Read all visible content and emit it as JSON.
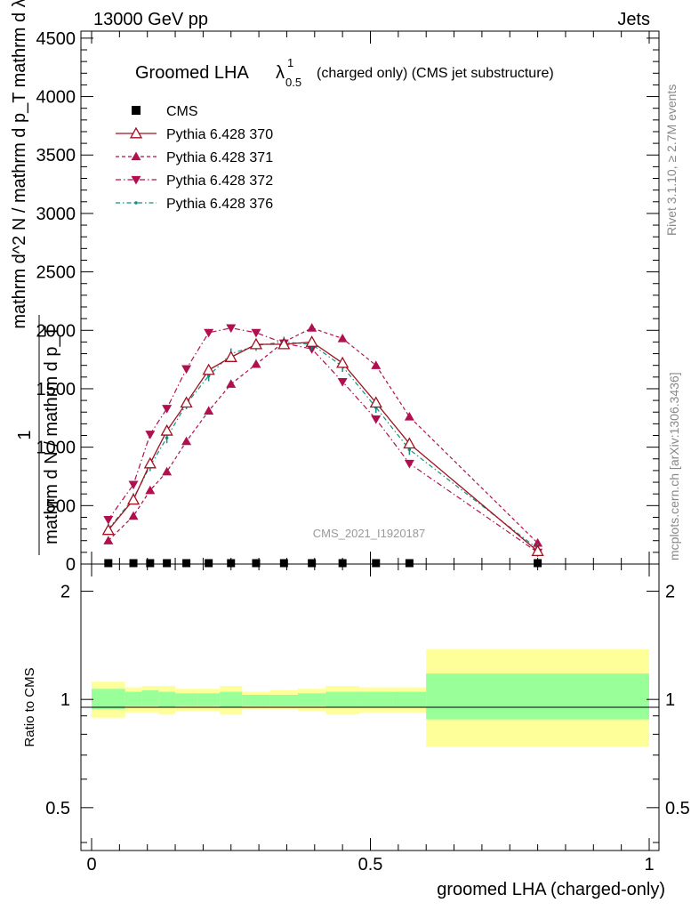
{
  "header": {
    "left": "13000 GeV pp",
    "right": "Jets"
  },
  "side_texts": {
    "rivet": "Rivet 3.1.10, ≥ 2.7M events",
    "mcplots": "mcplots.cern.ch [arXiv:1306.3436]"
  },
  "watermark": "CMS_2021_I1920187",
  "colors": {
    "cms": "#000000",
    "p370": "#a01020",
    "p371": "#b0104f",
    "p372": "#b0104f",
    "p376": "#109080",
    "band_inner": "#99ff99",
    "band_outer": "#ffff99"
  },
  "chart_data": {
    "type": "line",
    "title_main": "Groomed LHA",
    "title_symbol": "λ",
    "title_sup": "1",
    "title_sub": "0.5",
    "title_suffix": "(charged only) (CMS jet substructure)",
    "ylabel_numerator": "1",
    "ylabel_denominator": "mathrm d N / mathrm d p_T",
    "ylabel_extra": "mathrm d^2 N / mathrm d p_T mathrm d λ",
    "xlabel": "groomed LHA (charged-only)",
    "ratio_ylabel": "Ratio to CMS",
    "xlim": [
      0,
      1
    ],
    "ylim": [
      0,
      4560
    ],
    "ratio_ylim": [
      0.38,
      2.38
    ],
    "x_ticks": [
      0,
      0.5,
      1
    ],
    "x_tick_labels": [
      "0",
      "0.5",
      "1"
    ],
    "y_ticks": [
      0,
      500,
      1000,
      1500,
      2000,
      2500,
      3000,
      3500,
      4000,
      4500
    ],
    "y_tick_labels": [
      "0",
      "500",
      "1000",
      "1500",
      "2000",
      "2500",
      "3000",
      "3500",
      "4000",
      "4500"
    ],
    "ratio_ticks": [
      0.5,
      1,
      2
    ],
    "ratio_tick_labels": [
      "0.5",
      "1",
      "2"
    ],
    "x": [
      0.03,
      0.075,
      0.105,
      0.135,
      0.17,
      0.21,
      0.25,
      0.295,
      0.345,
      0.395,
      0.45,
      0.51,
      0.57,
      0.8
    ],
    "series": [
      {
        "name": "CMS",
        "key": "cms",
        "values": [
          8,
          8,
          8,
          8,
          8,
          8,
          8,
          8,
          8,
          8,
          8,
          8,
          8,
          8
        ]
      },
      {
        "name": "Pythia 6.428 370",
        "key": "p370",
        "values": [
          290,
          550,
          860,
          1140,
          1380,
          1660,
          1770,
          1880,
          1880,
          1900,
          1720,
          1380,
          1030,
          110
        ]
      },
      {
        "name": "Pythia 6.428 371",
        "key": "p371",
        "values": [
          200,
          410,
          630,
          790,
          1050,
          1310,
          1540,
          1710,
          1900,
          2020,
          1930,
          1700,
          1260,
          180
        ]
      },
      {
        "name": "Pythia 6.428 372",
        "key": "p372",
        "values": [
          380,
          680,
          1110,
          1330,
          1670,
          1980,
          2020,
          1980,
          1890,
          1840,
          1560,
          1240,
          860,
          100
        ]
      },
      {
        "name": "Pythia 6.428 376",
        "key": "p376",
        "values": [
          300,
          560,
          840,
          1080,
          1370,
          1610,
          1800,
          1870,
          1900,
          1880,
          1690,
          1340,
          980,
          130
        ]
      }
    ],
    "ratio_band_edges": [
      0,
      0.06,
      0.09,
      0.12,
      0.15,
      0.19,
      0.23,
      0.27,
      0.32,
      0.37,
      0.42,
      0.48,
      0.54,
      0.6,
      1.0
    ],
    "ratio_band_inner": [
      [
        0.94,
        1.07
      ],
      [
        0.96,
        1.05
      ],
      [
        0.96,
        1.06
      ],
      [
        0.95,
        1.05
      ],
      [
        0.96,
        1.04
      ],
      [
        0.96,
        1.04
      ],
      [
        0.95,
        1.05
      ],
      [
        0.96,
        1.03
      ],
      [
        0.96,
        1.03
      ],
      [
        0.96,
        1.04
      ],
      [
        0.95,
        1.05
      ],
      [
        0.95,
        1.05
      ],
      [
        0.95,
        1.05
      ],
      [
        0.88,
        1.18
      ]
    ],
    "ratio_band_outer": [
      [
        0.89,
        1.12
      ],
      [
        0.92,
        1.08
      ],
      [
        0.92,
        1.09
      ],
      [
        0.91,
        1.09
      ],
      [
        0.93,
        1.07
      ],
      [
        0.93,
        1.07
      ],
      [
        0.91,
        1.09
      ],
      [
        0.94,
        1.05
      ],
      [
        0.94,
        1.06
      ],
      [
        0.93,
        1.07
      ],
      [
        0.91,
        1.09
      ],
      [
        0.92,
        1.08
      ],
      [
        0.92,
        1.08
      ],
      [
        0.74,
        1.38
      ]
    ]
  }
}
